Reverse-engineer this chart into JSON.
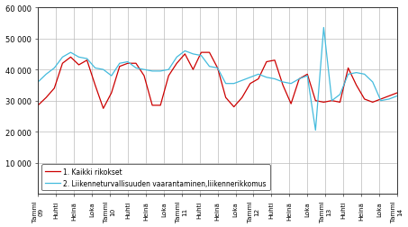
{
  "title": "",
  "ylabel": "",
  "xlabel": "",
  "ylim": [
    0,
    60000
  ],
  "yticks": [
    10000,
    20000,
    30000,
    40000,
    50000,
    60000
  ],
  "ytick_labels": [
    "10 000",
    "20 000",
    "30 000",
    "40 000",
    "50 000",
    "60 000"
  ],
  "xtick_labels": [
    "Tammi\n09",
    "Huhti",
    "Heinä",
    "Loka",
    "Tammi\n10",
    "Huhti",
    "Heinä",
    "Loka",
    "Tammi\n11",
    "Huhti",
    "Heinä",
    "Loka",
    "Tammi\n12",
    "Huhti",
    "Heinä",
    "Loka",
    "Tammi\n13",
    "Huhti",
    "Heinä",
    "Loka",
    "Tammi\n14"
  ],
  "line1_color": "#cc0000",
  "line2_color": "#44bbdd",
  "line1_label": "1. Kaikki rikokset",
  "line2_label": "2. Liikenneturvallisuuden vaarantaminen,liikennerikkomus",
  "background_color": "#ffffff",
  "grid_color": "#bbbbbb",
  "line1_data": [
    28500,
    31000,
    34000,
    42000,
    44000,
    41500,
    43000,
    35000,
    27500,
    32500,
    41000,
    42000,
    42000,
    38000,
    28500,
    28500,
    38000,
    42000,
    45000,
    40000,
    45500,
    45500,
    40500,
    31000,
    28000,
    31000,
    35500,
    37000,
    42500,
    43000,
    35000,
    29000,
    37000,
    38500,
    30000,
    29500,
    30000,
    29500,
    40500,
    35000,
    30500,
    29500,
    30500,
    31500,
    32500
  ],
  "line2_data": [
    36000,
    38500,
    40500,
    44000,
    45500,
    44000,
    43500,
    40500,
    40000,
    38000,
    42000,
    42500,
    40500,
    40000,
    39500,
    39500,
    40000,
    44000,
    46000,
    45000,
    44500,
    41000,
    40500,
    35500,
    35500,
    36500,
    37500,
    38500,
    37500,
    37000,
    36000,
    35500,
    37000,
    38000,
    20500,
    53500,
    30000,
    32000,
    38500,
    39000,
    38500,
    36000,
    30000,
    30500,
    31500
  ],
  "n_points": 45
}
